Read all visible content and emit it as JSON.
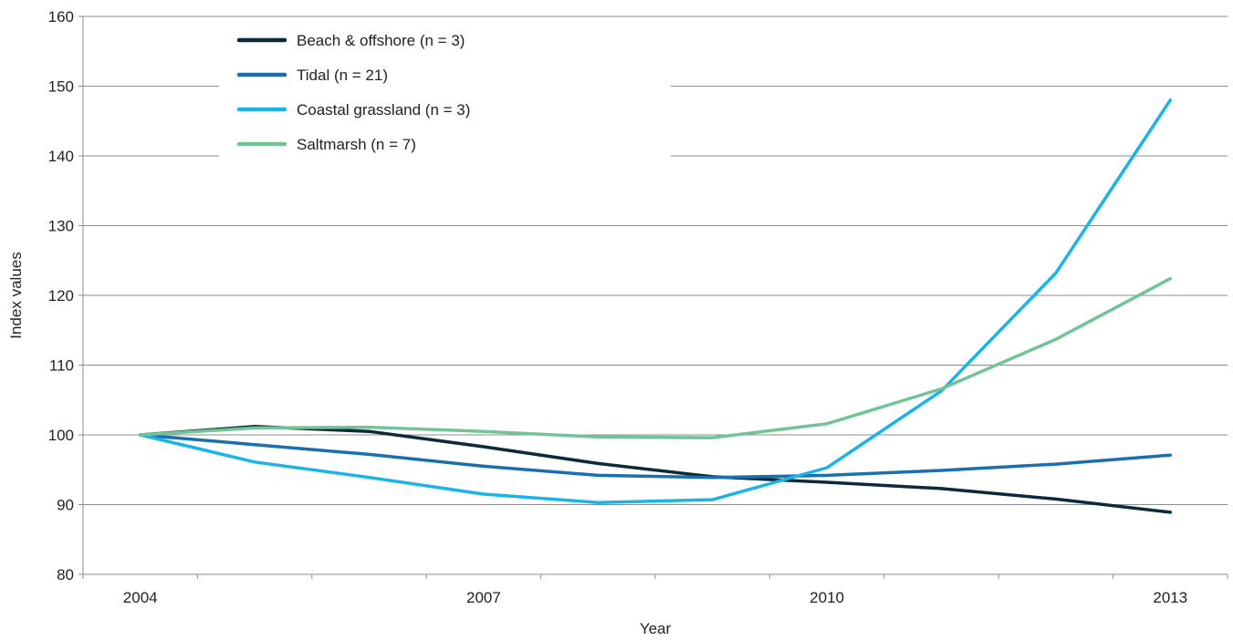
{
  "chart_data": {
    "type": "line",
    "title": "",
    "xlabel": "Year",
    "ylabel": "Index values",
    "ylim": [
      80,
      160
    ],
    "yticks": [
      80,
      90,
      100,
      110,
      120,
      130,
      140,
      150,
      160
    ],
    "xlim": [
      2004,
      2013
    ],
    "xtick_labels": [
      {
        "value": 2004,
        "label": "2004"
      },
      {
        "value": 2007,
        "label": "2007"
      },
      {
        "value": 2010,
        "label": "2010"
      },
      {
        "value": 2013,
        "label": "2013"
      }
    ],
    "grid": "horizontal",
    "legend_position": "top-left",
    "x": [
      2004,
      2005,
      2006,
      2007,
      2008,
      2009,
      2010,
      2011,
      2012,
      2013
    ],
    "series": [
      {
        "name": "Beach & offshore (n = 3)",
        "color": "#0d2a3a",
        "values": [
          100,
          101.2,
          100.5,
          98.3,
          95.9,
          94.0,
          93.2,
          92.3,
          90.8,
          88.9
        ]
      },
      {
        "name": "Tidal (n = 21)",
        "color": "#1a6fae",
        "values": [
          100,
          98.6,
          97.2,
          95.5,
          94.2,
          93.9,
          94.2,
          94.9,
          95.8,
          97.1
        ]
      },
      {
        "name": "Coastal grassland (n = 3)",
        "color": "#1ab4e6",
        "values": [
          100,
          96.1,
          93.9,
          91.5,
          90.3,
          90.7,
          95.3,
          106.3,
          123.2,
          148.0
        ]
      },
      {
        "name": "Saltmarsh (n = 7)",
        "color": "#72c497",
        "values": [
          100,
          101.0,
          101.1,
          100.5,
          99.7,
          99.6,
          101.6,
          106.6,
          113.7,
          122.4
        ]
      }
    ]
  }
}
